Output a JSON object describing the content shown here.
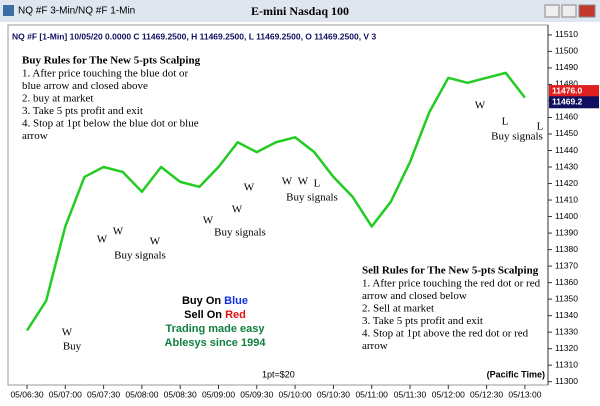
{
  "chart_data": {
    "type": "line",
    "window_title": "NQ #F 3-Min/NQ #F 1-Min",
    "title": "E-mini Nasdaq 100",
    "info_line": "NQ #F [1-Min] 10/05/20  0.0000 C 11469.2500, H 11469.2500, L 11469.2500, O 11469.2500, V 3",
    "categories": [
      "05/06:30",
      null,
      "05/07:00",
      null,
      "05/07:30",
      null,
      "05/08:00",
      null,
      "05/08:30",
      null,
      "05/09:00",
      null,
      "05/09:30",
      null,
      "05/10:00",
      null,
      "05/10:30",
      null,
      "05/11:00",
      null,
      "05/11:30",
      null,
      "05/12:00",
      null,
      "05/12:30",
      null,
      "05/13:00"
    ],
    "series": [
      {
        "color": "#22cc22",
        "values": [
          11331,
          11349,
          11394,
          11424,
          11430,
          11427,
          11415,
          11430,
          11421,
          11418,
          11430,
          11445,
          11439,
          11445,
          11448,
          11439,
          11424,
          11412,
          11394,
          11409,
          11433,
          11463,
          11484,
          11481,
          11484,
          11487,
          11472
        ]
      }
    ],
    "ylim": [
      11298,
      11516
    ],
    "yticks": [
      11300,
      11310,
      11320,
      11330,
      11340,
      11350,
      11360,
      11370,
      11380,
      11390,
      11400,
      11410,
      11420,
      11430,
      11440,
      11450,
      11460,
      11470,
      11480,
      11490,
      11500,
      11510
    ],
    "price_tags": [
      {
        "value": 11476,
        "label": "11476.0",
        "color": "#e02020"
      },
      {
        "value": 11469.2,
        "label": "11469.2",
        "color": "#101060"
      }
    ],
    "annotations": [
      "W",
      "Buy",
      "W",
      "W",
      "W",
      "Buy signals",
      "W",
      "W",
      "W",
      "Buy signals",
      "W",
      "W",
      "L",
      "Buy signals",
      "W",
      "L",
      "L",
      "Buy signals"
    ],
    "buy_rules": {
      "title": "Buy Rules for The New 5-pts Scalping",
      "lines": [
        "1. After price touching the blue dot or",
        "blue arrow and closed above",
        "2. buy at market",
        "3. Take 5 pts profit and exit",
        "4. Stop at 1pt below the blue dot or blue",
        "arrow"
      ]
    },
    "sell_rules": {
      "title": "Sell Rules for The New 5-pts Scalping",
      "lines": [
        "1. After price touching the red dot or red",
        "arrow and closed below",
        "2. Sell at market",
        "3. Take 5 pts profit and exit",
        "4. Stop at 1pt above the red dot or red",
        "arrow"
      ]
    },
    "brand": {
      "buy_on": "Buy On",
      "blue": "Blue",
      "sell_on": "Sell On",
      "red": "Red",
      "line1": "Trading made easy",
      "line2": "Ablesys since 1994"
    },
    "point_value": "1pt=$20",
    "timezone": "(Pacific Time)"
  }
}
